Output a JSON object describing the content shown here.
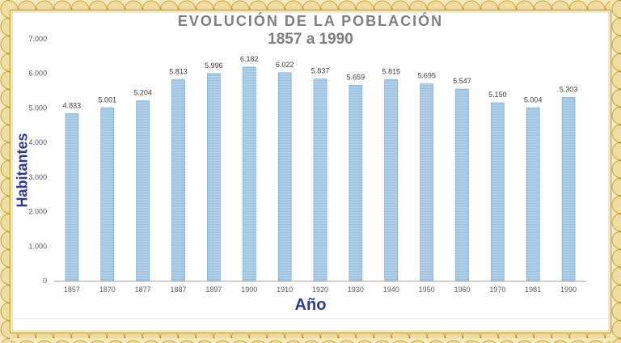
{
  "chart_data": {
    "type": "bar",
    "title": "EVOLUCIÓN DE LA POBLACIÓN",
    "subtitle": "1857 a 1990",
    "xlabel": "Año",
    "ylabel": "Habitantes",
    "categories": [
      "1857",
      "1870",
      "1877",
      "1887",
      "1897",
      "1900",
      "1910",
      "1920",
      "1930",
      "1940",
      "1950",
      "1960",
      "1970",
      "1981",
      "1990"
    ],
    "values": [
      4833,
      5001,
      5204,
      5813,
      5996,
      6182,
      6022,
      5837,
      5659,
      5815,
      5695,
      5547,
      5150,
      5004,
      5303
    ],
    "data_labels": [
      "4.833",
      "5.001",
      "5.204",
      "5.813",
      "5.996",
      "6.182",
      "6.022",
      "5.837",
      "5.659",
      "5.815",
      "5.695",
      "5.547",
      "5.150",
      "5.004",
      "5.303"
    ],
    "ylim": [
      0,
      7000
    ],
    "yticks": [
      0,
      1000,
      2000,
      3000,
      4000,
      5000,
      6000,
      7000
    ],
    "ytick_labels": [
      "0",
      "1.000",
      "2.000",
      "3.000",
      "4.000",
      "5.000",
      "6.000",
      "7.000"
    ],
    "grid": false,
    "legend": "none",
    "colors": {
      "bar": "#9dc3e0",
      "bar_edge": "#6fa3c9",
      "border": "#d4b24c",
      "axis_title": "#2e3a8c",
      "title": "#7f7f7f"
    }
  }
}
